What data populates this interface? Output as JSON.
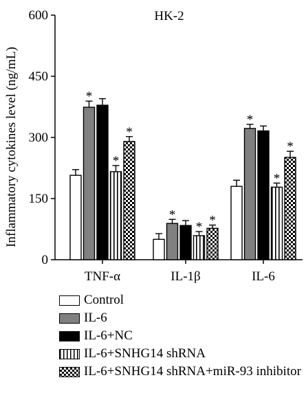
{
  "chart_data": {
    "type": "bar",
    "title": "HK-2",
    "xlabel": "",
    "ylabel": "Inflammatory cytokines level (ng/mL)",
    "ylim": [
      0,
      600
    ],
    "yticks": [
      0,
      150,
      300,
      450,
      600
    ],
    "categories": [
      "TNF-α",
      "IL-1β",
      "IL-6"
    ],
    "series": [
      {
        "name": "Control",
        "values": [
          207,
          50,
          180
        ],
        "errors": [
          14,
          14,
          15
        ],
        "significant": [
          false,
          false,
          false
        ],
        "pattern": "white"
      },
      {
        "name": "IL-6",
        "values": [
          374,
          89,
          322
        ],
        "errors": [
          15,
          10,
          10
        ],
        "significant": [
          true,
          true,
          true
        ],
        "pattern": "gray"
      },
      {
        "name": "IL-6+NC",
        "values": [
          379,
          84,
          316
        ],
        "errors": [
          16,
          12,
          12
        ],
        "significant": [
          false,
          false,
          false
        ],
        "pattern": "black"
      },
      {
        "name": "IL-6+SNHG14 shRNA",
        "values": [
          216,
          59,
          178
        ],
        "errors": [
          15,
          10,
          10
        ],
        "significant": [
          true,
          true,
          true
        ],
        "pattern": "stripes"
      },
      {
        "name": "IL-6+SNHG14 shRNA+miR-93 inhibitor",
        "values": [
          290,
          77,
          251
        ],
        "errors": [
          12,
          8,
          15
        ],
        "significant": [
          true,
          true,
          true
        ],
        "pattern": "checker"
      }
    ],
    "significance_marker": "*",
    "grid": false,
    "legend_position": "bottom-left"
  },
  "colors": {
    "gray": "#808080",
    "black": "#000000",
    "white": "#ffffff"
  }
}
